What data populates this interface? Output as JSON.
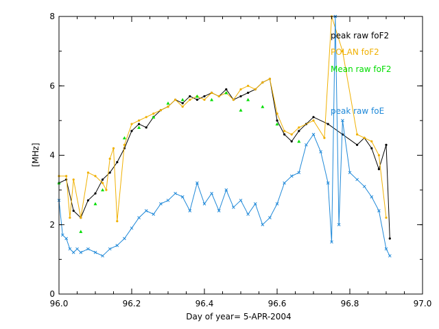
{
  "chart_data": {
    "type": "line",
    "xlabel": "Day of year= 5-APR-2004",
    "ylabel": "[MHz]",
    "xlim": [
      96.0,
      97.0
    ],
    "ylim": [
      0,
      8
    ],
    "x_ticks": [
      "96.0",
      "96.2",
      "96.4",
      "96.6",
      "96.8",
      "97.0"
    ],
    "y_ticks": [
      "0",
      "2",
      "4",
      "6",
      "8"
    ],
    "grid": false,
    "legend_position": "top-right, inside plot",
    "series": [
      {
        "name": "peak raw foF2",
        "color": "#000000",
        "marker": "dot",
        "x": [
          96.0,
          96.02,
          96.04,
          96.06,
          96.08,
          96.1,
          96.12,
          96.14,
          96.16,
          96.18,
          96.2,
          96.22,
          96.24,
          96.26,
          96.28,
          96.3,
          96.32,
          96.34,
          96.36,
          96.38,
          96.4,
          96.42,
          96.44,
          96.46,
          96.48,
          96.5,
          96.52,
          96.54,
          96.56,
          96.58,
          96.6,
          96.62,
          96.64,
          96.66,
          96.68,
          96.7,
          96.74,
          96.78,
          96.82,
          96.84,
          96.86,
          96.88,
          96.9,
          96.91
        ],
        "values": [
          3.2,
          3.3,
          2.4,
          2.2,
          2.7,
          2.9,
          3.3,
          3.5,
          3.8,
          4.2,
          4.7,
          4.9,
          4.8,
          5.1,
          5.3,
          5.4,
          5.6,
          5.5,
          5.7,
          5.6,
          5.7,
          5.8,
          5.7,
          5.9,
          5.6,
          5.7,
          5.8,
          5.9,
          6.1,
          6.2,
          5.0,
          4.6,
          4.4,
          4.7,
          4.9,
          5.1,
          4.9,
          4.6,
          4.3,
          4.5,
          4.2,
          3.6,
          4.3,
          1.6
        ]
      },
      {
        "name": "POLAN foF2",
        "color": "#F0B000",
        "marker": "dot",
        "x": [
          96.0,
          96.02,
          96.03,
          96.04,
          96.06,
          96.08,
          96.1,
          96.12,
          96.13,
          96.14,
          96.15,
          96.16,
          96.18,
          96.2,
          96.22,
          96.24,
          96.26,
          96.28,
          96.3,
          96.32,
          96.34,
          96.36,
          96.38,
          96.4,
          96.42,
          96.44,
          96.46,
          96.48,
          96.5,
          96.52,
          96.54,
          96.56,
          96.58,
          96.6,
          96.62,
          96.64,
          96.66,
          96.7,
          96.73,
          96.75,
          96.78,
          96.82,
          96.84,
          96.86,
          96.88,
          96.9
        ],
        "values": [
          3.4,
          3.4,
          2.2,
          3.3,
          2.2,
          3.5,
          3.4,
          3.2,
          3.0,
          3.9,
          4.2,
          2.1,
          4.3,
          4.9,
          5.0,
          5.1,
          5.2,
          5.3,
          5.4,
          5.6,
          5.4,
          5.6,
          5.7,
          5.6,
          5.8,
          5.7,
          5.8,
          5.6,
          5.9,
          6.0,
          5.9,
          6.1,
          6.2,
          5.2,
          4.7,
          4.6,
          4.8,
          5.0,
          4.5,
          8.0,
          7.0,
          4.6,
          4.5,
          4.4,
          4.0,
          2.2
        ]
      },
      {
        "name": "Mean raw foF2",
        "color": "#00DD00",
        "marker": "triangle",
        "x": [
          96.0,
          96.06,
          96.1,
          96.12,
          96.18,
          96.22,
          96.26,
          96.3,
          96.34,
          96.38,
          96.42,
          96.46,
          96.5,
          96.52,
          96.56,
          96.6,
          96.66
        ],
        "values": [
          3.2,
          1.8,
          2.6,
          3.0,
          4.5,
          4.8,
          5.1,
          5.5,
          5.6,
          5.7,
          5.6,
          5.8,
          5.3,
          5.6,
          5.4,
          4.9,
          4.4
        ]
      },
      {
        "name": "peak raw foE",
        "color": "#1E88D8",
        "marker": "x",
        "x": [
          96.0,
          96.01,
          96.02,
          96.03,
          96.04,
          96.05,
          96.06,
          96.08,
          96.1,
          96.12,
          96.14,
          96.16,
          96.18,
          96.2,
          96.22,
          96.24,
          96.26,
          96.28,
          96.3,
          96.32,
          96.34,
          96.36,
          96.38,
          96.4,
          96.42,
          96.44,
          96.46,
          96.48,
          96.5,
          96.52,
          96.54,
          96.56,
          96.58,
          96.6,
          96.62,
          96.64,
          96.66,
          96.68,
          96.7,
          96.72,
          96.74,
          96.75,
          96.76,
          96.77,
          96.78,
          96.8,
          96.82,
          96.84,
          96.86,
          96.88,
          96.9,
          96.91
        ],
        "values": [
          2.7,
          1.7,
          1.6,
          1.3,
          1.2,
          1.3,
          1.2,
          1.3,
          1.2,
          1.1,
          1.3,
          1.4,
          1.6,
          1.9,
          2.2,
          2.4,
          2.3,
          2.6,
          2.7,
          2.9,
          2.8,
          2.4,
          3.2,
          2.6,
          2.9,
          2.4,
          3.0,
          2.5,
          2.7,
          2.3,
          2.6,
          2.0,
          2.2,
          2.6,
          3.2,
          3.4,
          3.5,
          4.3,
          4.6,
          4.1,
          3.2,
          1.5,
          8.0,
          2.0,
          5.0,
          3.5,
          3.3,
          3.1,
          2.8,
          2.4,
          1.3,
          1.1
        ]
      }
    ]
  }
}
